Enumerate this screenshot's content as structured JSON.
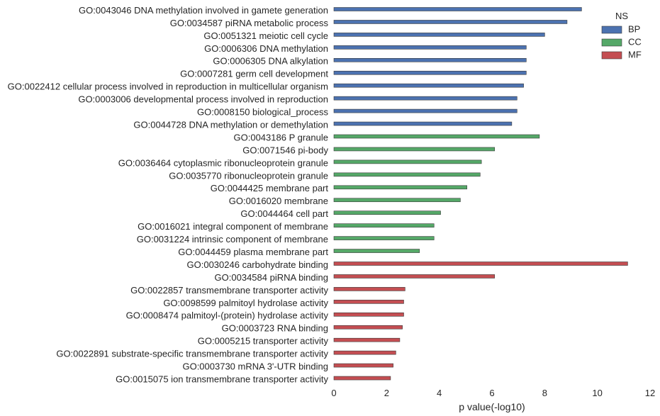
{
  "chart_data": {
    "type": "bar",
    "orientation": "horizontal",
    "xlabel": "p value(-log10)",
    "ylabel": "",
    "title": "",
    "xlim": [
      0,
      12
    ],
    "xticks": [
      "0",
      "2",
      "4",
      "6",
      "8",
      "10",
      "12"
    ],
    "grid": false,
    "legend": {
      "title": "NS",
      "placement": "top-right",
      "entries": [
        {
          "name": "BP",
          "color": "#4c72b0"
        },
        {
          "name": "CC",
          "color": "#55a868"
        },
        {
          "name": "MF",
          "color": "#c44e52"
        }
      ]
    },
    "series": [
      {
        "name": "BP",
        "color": "#4c72b0",
        "categories": [
          "GO:0043046 DNA methylation involved in gamete generation",
          "GO:0034587 piRNA metabolic process",
          "GO:0051321 meiotic cell cycle",
          "GO:0006306 DNA methylation",
          "GO:0006305 DNA alkylation",
          "GO:0007281 germ cell development",
          "GO:0022412 cellular process involved in reproduction in multicellular organism",
          "GO:0003006 developmental process involved in reproduction",
          "GO:0008150 biological_process",
          "GO:0044728 DNA methylation or demethylation"
        ],
        "values": [
          9.4,
          8.85,
          8.0,
          7.3,
          7.3,
          7.3,
          7.2,
          6.95,
          6.95,
          6.75
        ]
      },
      {
        "name": "CC",
        "color": "#55a868",
        "categories": [
          "GO:0043186 P granule",
          "GO:0071546 pi-body",
          "GO:0036464 cytoplasmic ribonucleoprotein granule",
          "GO:0035770 ribonucleoprotein granule",
          "GO:0044425 membrane part",
          "GO:0016020 membrane",
          "GO:0044464 cell part",
          "GO:0016021 integral component of membrane",
          "GO:0031224 intrinsic component of membrane",
          "GO:0044459 plasma membrane part"
        ],
        "values": [
          7.8,
          6.1,
          5.6,
          5.55,
          5.05,
          4.8,
          4.05,
          3.8,
          3.8,
          3.25
        ]
      },
      {
        "name": "MF",
        "color": "#c44e52",
        "categories": [
          "GO:0030246 carbohydrate binding",
          "GO:0034584 piRNA binding",
          "GO:0022857 transmembrane transporter activity",
          "GO:0098599 palmitoyl hydrolase activity",
          "GO:0008474 palmitoyl-(protein) hydrolase activity",
          "GO:0003723 RNA binding",
          "GO:0005215 transporter activity",
          "GO:0022891 substrate-specific transmembrane transporter activity",
          "GO:0003730 mRNA 3'-UTR binding",
          "GO:0015075 ion transmembrane transporter activity"
        ],
        "values": [
          11.15,
          6.1,
          2.7,
          2.65,
          2.65,
          2.6,
          2.5,
          2.35,
          2.25,
          2.15
        ]
      }
    ]
  }
}
